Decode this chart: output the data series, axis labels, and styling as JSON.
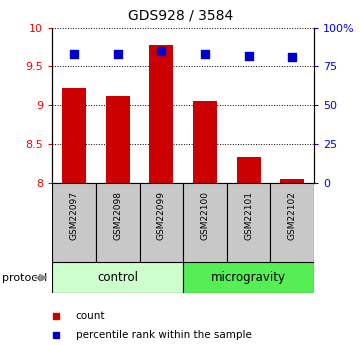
{
  "title": "GDS928 / 3584",
  "samples": [
    "GSM22097",
    "GSM22098",
    "GSM22099",
    "GSM22100",
    "GSM22101",
    "GSM22102"
  ],
  "bar_values": [
    9.22,
    9.12,
    9.78,
    9.06,
    8.33,
    8.05
  ],
  "percentile_values": [
    83,
    83,
    85,
    83,
    82,
    81
  ],
  "ylim": [
    8,
    10
  ],
  "yticks": [
    8,
    8.5,
    9,
    9.5,
    10
  ],
  "right_yticks": [
    0,
    25,
    50,
    75,
    100
  ],
  "right_ylim": [
    0,
    100
  ],
  "bar_color": "#cc0000",
  "dot_color": "#0000cc",
  "n_control": 3,
  "n_microgravity": 3,
  "control_color": "#ccffcc",
  "microgravity_color": "#55ee55",
  "sample_box_color": "#c8c8c8",
  "legend_count_label": "count",
  "legend_percentile_label": "percentile rank within the sample",
  "protocol_label": "protocol",
  "control_label": "control",
  "microgravity_label": "microgravity",
  "bar_width": 0.55,
  "dot_size": 30
}
